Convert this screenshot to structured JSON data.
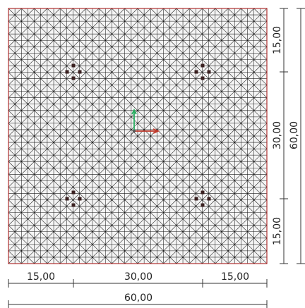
{
  "colors": {
    "mesh_line": "#1a1a1a",
    "mesh_edge": "#b03030",
    "mesh_bg": "#f4f4f4",
    "node_marker": "#3a2020",
    "axis_x": "#c0392b",
    "axis_y": "#27ae60",
    "dimension": "#333333"
  },
  "mesh": {
    "divisions": 40
  },
  "dimensions": {
    "bottom_segments": [
      "15,00",
      "30,00",
      "15,00"
    ],
    "bottom_total": "60,00",
    "right_segments": [
      "15,00",
      "30,00",
      "15,00"
    ],
    "right_total": "60,00"
  },
  "icons": {
    "axis": "coordinate-axes-icon",
    "supports": "support-node-icon"
  }
}
